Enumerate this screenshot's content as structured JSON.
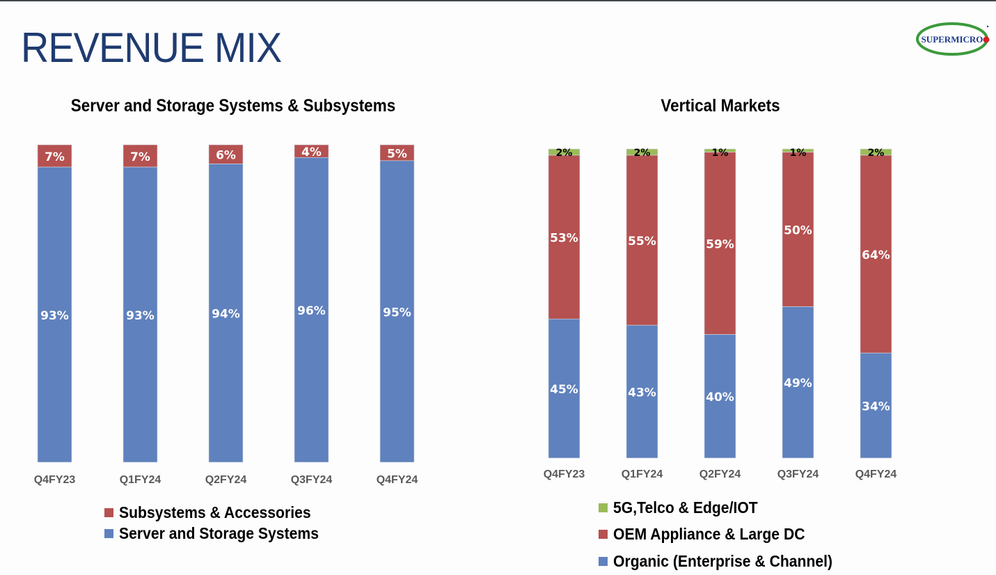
{
  "page": {
    "title": "REVENUE MIX",
    "logo_text": "SUPERMICRO"
  },
  "colors": {
    "title": "#1f3b70",
    "blue": "#5f81bd",
    "red": "#b55150",
    "green": "#9bbb59",
    "axis_label": "#595959"
  },
  "chart_data": [
    {
      "type": "bar",
      "stacked": true,
      "percent": true,
      "title": "Server and Storage Systems & Subsystems",
      "categories": [
        "Q4FY23",
        "Q1FY24",
        "Q2FY24",
        "Q3FY24",
        "Q4FY24"
      ],
      "series": [
        {
          "name": "Server and Storage Systems",
          "color": "blue",
          "values": [
            93,
            93,
            94,
            96,
            95
          ],
          "labels": [
            "93%",
            "93%",
            "94%",
            "96%",
            "95%"
          ]
        },
        {
          "name": "Subsystems & Accessories",
          "color": "red",
          "values": [
            7,
            7,
            6,
            4,
            5
          ],
          "labels": [
            "7%",
            "7%",
            "6%",
            "4%",
            "5%"
          ]
        }
      ],
      "legend": {
        "position": "bottom",
        "order": [
          "Subsystems & Accessories",
          "Server and Storage Systems"
        ]
      },
      "ylim": [
        0,
        100
      ],
      "grid": false,
      "xlabel": "",
      "ylabel": ""
    },
    {
      "type": "bar",
      "stacked": true,
      "percent": true,
      "title": "Vertical Markets",
      "categories": [
        "Q4FY23",
        "Q1FY24",
        "Q2FY24",
        "Q3FY24",
        "Q4FY24"
      ],
      "series": [
        {
          "name": "Organic (Enterprise & Channel)",
          "color": "blue",
          "values": [
            45,
            43,
            40,
            49,
            34
          ],
          "labels": [
            "45%",
            "43%",
            "40%",
            "49%",
            "34%"
          ]
        },
        {
          "name": "OEM Appliance & Large DC",
          "color": "red",
          "values": [
            53,
            55,
            59,
            50,
            64
          ],
          "labels": [
            "53%",
            "55%",
            "59%",
            "50%",
            "64%"
          ]
        },
        {
          "name": "5G,Telco & Edge/IOT",
          "color": "green",
          "values": [
            2,
            2,
            1,
            1,
            2
          ],
          "labels": [
            "2%",
            "2%",
            "1%",
            "1%",
            "2%"
          ]
        }
      ],
      "legend": {
        "position": "bottom",
        "order": [
          "5G,Telco & Edge/IOT",
          "OEM Appliance & Large DC",
          "Organic (Enterprise & Channel)"
        ]
      },
      "ylim": [
        0,
        100
      ],
      "grid": false,
      "xlabel": "",
      "ylabel": ""
    }
  ]
}
